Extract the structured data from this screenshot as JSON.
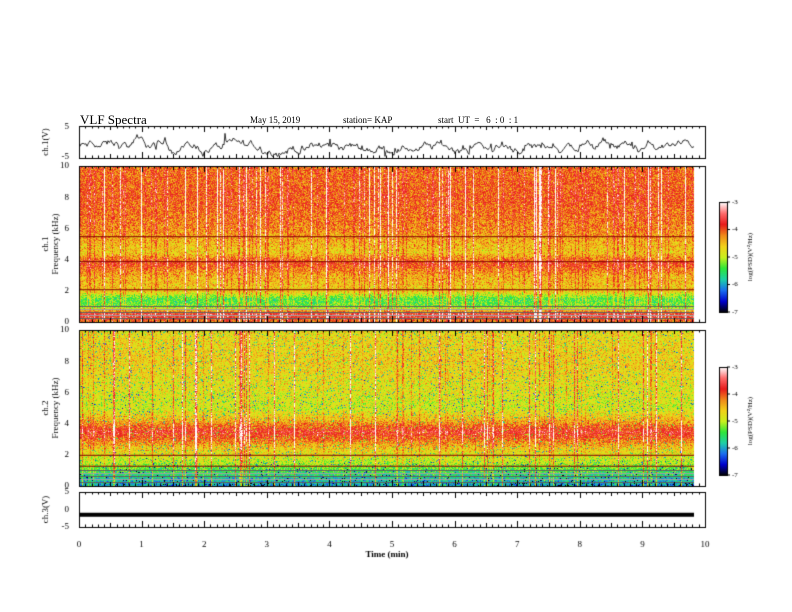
{
  "header": {
    "title": "VLF Spectra",
    "date": "May 15, 2019",
    "station": "station= KAP",
    "start": "start  UT  =   6  : 0  : 1"
  },
  "colors": {
    "spectrogram_scale": [
      "#ffffff",
      "#ff6b6b",
      "#e81c1c",
      "#f08a1a",
      "#f2d21a",
      "#c8f01e",
      "#2ee63a",
      "#1ed0a8",
      "#1a6ef0",
      "#0000cc",
      "#000000"
    ],
    "trace": "#000000"
  },
  "chart_data": [
    {
      "type": "line",
      "panel": "ch1-waveform",
      "ylabel": "ch.1(V)",
      "ylim": [
        -5,
        5
      ],
      "y_ticklabels": [
        "5",
        "-5"
      ],
      "xlim": [
        0,
        10
      ],
      "series": [
        {
          "typical_level": -1.5,
          "range": [
            -4.5,
            2.8
          ]
        }
      ]
    },
    {
      "type": "heatmap",
      "panel": "ch1-spectrogram",
      "ylabel_lines": [
        "ch.1",
        "Frequency (kHz)"
      ],
      "ylim": [
        0,
        10
      ],
      "y_ticklabels": [
        "10",
        "8",
        "6",
        "4",
        "2",
        "0"
      ],
      "x_end_min": 9.82,
      "colorbar": {
        "label": "log(PSD)(V²/Hz)",
        "range": [
          -7,
          -3
        ],
        "ticks": [
          "-3",
          "-4",
          "-5",
          "-6",
          "-7"
        ]
      },
      "intensity_by_freq_khz": [
        [
          0,
          -4.2
        ],
        [
          0.5,
          -3.6
        ],
        [
          1.0,
          -5.2
        ],
        [
          1.5,
          -5.4
        ],
        [
          2.0,
          -4.6
        ],
        [
          3.0,
          -4.4
        ],
        [
          3.8,
          -3.9
        ],
        [
          4.5,
          -4.6
        ],
        [
          6.0,
          -4.2
        ],
        [
          8.0,
          -4.0
        ],
        [
          10.0,
          -4.1
        ]
      ],
      "horizontal_lines_khz": [
        5.5,
        3.9,
        2.1
      ],
      "bursts": "frequent broadband vertical red impulses across 0-10 min"
    },
    {
      "type": "heatmap",
      "panel": "ch2-spectrogram",
      "ylabel_lines": [
        "ch.2",
        "Frequency (kHz)"
      ],
      "ylim": [
        0,
        10
      ],
      "y_ticklabels": [
        "10",
        "8",
        "6",
        "4",
        "2",
        "0"
      ],
      "x_end_min": 9.82,
      "colorbar": {
        "label": "log(PSD)(V²/Hz)",
        "range": [
          -7,
          -3
        ],
        "ticks": [
          "-3",
          "-4",
          "-5",
          "-6",
          "-7"
        ]
      },
      "intensity_by_freq_khz": [
        [
          0,
          -6.0
        ],
        [
          0.5,
          -5.8
        ],
        [
          1.0,
          -5.4
        ],
        [
          1.5,
          -5.0
        ],
        [
          2.0,
          -4.8
        ],
        [
          2.5,
          -4.5
        ],
        [
          3.5,
          -3.7
        ],
        [
          4.2,
          -4.4
        ],
        [
          5.0,
          -4.9
        ],
        [
          6.0,
          -4.8
        ],
        [
          8.0,
          -4.6
        ],
        [
          10.0,
          -4.7
        ]
      ],
      "horizontal_lines_khz": [
        2.0,
        1.3
      ],
      "bursts": "vertical broadband impulses, strong near 0.95, 2.5, 5.8 min"
    },
    {
      "type": "line",
      "panel": "ch3-waveform",
      "ylabel": "ch.3(V)",
      "ylim": [
        -5,
        5
      ],
      "y_ticklabels": [
        "5",
        "0",
        "-5"
      ],
      "xlim": [
        0,
        10
      ],
      "series": [
        {
          "constant_level": -1.5
        }
      ]
    }
  ],
  "xaxis": {
    "label": "Time (min)",
    "ticklabels": [
      "0",
      "1",
      "2",
      "3",
      "4",
      "5",
      "6",
      "7",
      "8",
      "9",
      "10"
    ],
    "range": [
      0,
      10
    ]
  }
}
